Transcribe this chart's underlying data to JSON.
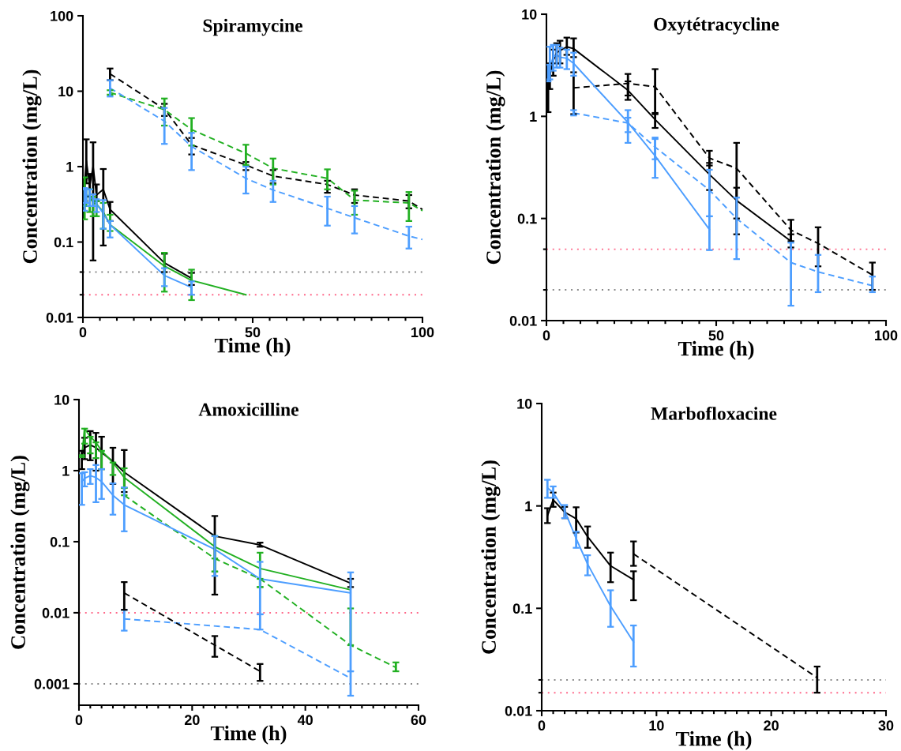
{
  "chart_data": [
    {
      "type": "line",
      "title": "Spiramycine",
      "xlabel": "Time (h)",
      "ylabel": "Concentration (mg/L)",
      "log": "y",
      "grid": false,
      "legend": false,
      "xlim": [
        0,
        100
      ],
      "ylim": [
        0.01,
        100
      ],
      "xticks": [
        0,
        {
          "value": 5,
          "label": null
        },
        {
          "value": 10,
          "label": null
        },
        {
          "value": 15,
          "label": null
        },
        {
          "value": 20,
          "label": null
        },
        {
          "value": 25,
          "label": null
        },
        {
          "value": 30,
          "label": null
        },
        {
          "value": 35,
          "label": null
        },
        {
          "value": 40,
          "label": null
        },
        {
          "value": 45,
          "label": null
        },
        50,
        {
          "value": 55,
          "label": null
        },
        {
          "value": 60,
          "label": null
        },
        {
          "value": 65,
          "label": null
        },
        {
          "value": 70,
          "label": null
        },
        {
          "value": 75,
          "label": null
        },
        {
          "value": 80,
          "label": null
        },
        {
          "value": 85,
          "label": null
        },
        {
          "value": 90,
          "label": null
        },
        {
          "value": 95,
          "label": null
        },
        100
      ],
      "yticks": [
        0.01,
        {
          "value": 0.02,
          "label": null
        },
        {
          "value": 0.04,
          "label": null
        },
        0.1,
        1,
        10,
        100
      ],
      "ref_lines": [
        {
          "axis": "y",
          "value": 0.04,
          "color": "#888888",
          "line_style": "dotted"
        },
        {
          "axis": "y",
          "value": 0.02,
          "color": "#ff6688",
          "line_style": "dotted"
        }
      ],
      "series": [
        {
          "color": "#000000",
          "line_style": "solid",
          "x": [
            0.5,
            1,
            2,
            3,
            4,
            6,
            8,
            24,
            32
          ],
          "values": [
            0.6,
            1.2,
            0.55,
            1.0,
            0.42,
            0.5,
            0.27,
            0.053,
            0.033
          ],
          "errors": [
            [
              0.35,
              0.7
            ],
            [
              0.6,
              2.3
            ],
            [
              0.4,
              0.8
            ],
            [
              0.057,
              2.1
            ],
            [
              0.35,
              0.58
            ],
            [
              0.09,
              0.93
            ],
            [
              0.19,
              0.34
            ],
            [
              0.04,
              0.07
            ],
            [
              0.027,
              0.039
            ]
          ]
        },
        {
          "color": "#22b022",
          "line_style": "solid",
          "x": [
            0.5,
            1,
            2,
            3,
            4,
            6,
            8,
            24,
            32,
            48
          ],
          "values": [
            0.45,
            0.42,
            0.4,
            0.33,
            0.32,
            0.25,
            0.17,
            0.048,
            0.031,
            0.02
          ],
          "errors": [
            [
              0.2,
              0.72
            ],
            [
              0.3,
              0.5
            ],
            [
              0.25,
              0.5
            ],
            [
              0.22,
              0.4
            ],
            [
              0.22,
              0.35
            ],
            [
              0.15,
              0.33
            ],
            [
              0.14,
              0.23
            ],
            [
              0.022,
              0.072
            ],
            [
              0.017,
              0.043
            ],
            null
          ]
        },
        {
          "color": "#4d9eff",
          "line_style": "solid",
          "x": [
            0.5,
            1,
            2,
            3,
            4,
            6,
            8,
            24,
            32
          ],
          "values": [
            0.4,
            0.42,
            0.4,
            0.37,
            0.32,
            0.24,
            0.17,
            0.036,
            0.025
          ],
          "errors": [
            [
              0.26,
              0.52
            ],
            [
              0.33,
              0.5
            ],
            [
              0.3,
              0.5
            ],
            [
              0.3,
              0.43
            ],
            [
              0.25,
              0.37
            ],
            [
              0.15,
              0.36
            ],
            [
              0.115,
              0.19
            ],
            [
              0.026,
              0.045
            ],
            [
              0.02,
              0.03
            ]
          ]
        },
        {
          "color": "#000000",
          "line_style": "dashed",
          "x": [
            8,
            24,
            32,
            48,
            56,
            72,
            80,
            96,
            100
          ],
          "values": [
            17,
            5.8,
            1.95,
            1.05,
            0.75,
            0.58,
            0.42,
            0.35,
            0.27
          ],
          "errors": [
            [
              14,
              20
            ],
            [
              4.7,
              6.8
            ],
            [
              1.45,
              2.4
            ],
            [
              0.9,
              1.15
            ],
            [
              0.6,
              0.9
            ],
            [
              0.45,
              0.65
            ],
            [
              0.33,
              0.5
            ],
            [
              0.28,
              0.42
            ],
            null
          ]
        },
        {
          "color": "#22b022",
          "line_style": "dashed",
          "x": [
            8,
            24,
            32,
            48,
            56,
            72,
            80,
            96,
            100
          ],
          "values": [
            9.6,
            5.7,
            3.1,
            1.5,
            0.95,
            0.7,
            0.36,
            0.33,
            0.26
          ],
          "errors": [
            [
              9,
              10.3
            ],
            [
              3.5,
              8
            ],
            [
              1.9,
              4.4
            ],
            [
              1.05,
              1.95
            ],
            [
              0.58,
              1.28
            ],
            [
              0.5,
              0.92
            ],
            [
              0.23,
              0.48
            ],
            [
              0.19,
              0.46
            ],
            null
          ]
        },
        {
          "color": "#4d9eff",
          "line_style": "dashed",
          "x": [
            8,
            24,
            32,
            48,
            56,
            72,
            80,
            96,
            100
          ],
          "values": [
            11,
            4.0,
            1.85,
            0.7,
            0.49,
            0.28,
            0.21,
            0.12,
            0.108
          ],
          "errors": [
            [
              8.5,
              14
            ],
            [
              2.0,
              6.0
            ],
            [
              0.9,
              2.8
            ],
            [
              0.44,
              1.0
            ],
            [
              0.34,
              0.65
            ],
            [
              0.165,
              0.4
            ],
            [
              0.13,
              0.3
            ],
            [
              0.082,
              0.16
            ],
            null
          ]
        }
      ]
    },
    {
      "type": "line",
      "title": "Oxytétracycline",
      "xlabel": "Time (h)",
      "ylabel": "Concentration (mg/L)",
      "log": "y",
      "grid": false,
      "legend": false,
      "xlim": [
        0,
        100
      ],
      "ylim": [
        0.01,
        10
      ],
      "xticks": [
        0,
        {
          "value": 5,
          "label": null
        },
        {
          "value": 10,
          "label": null
        },
        {
          "value": 15,
          "label": null
        },
        {
          "value": 20,
          "label": null
        },
        {
          "value": 25,
          "label": null
        },
        {
          "value": 30,
          "label": null
        },
        {
          "value": 35,
          "label": null
        },
        {
          "value": 40,
          "label": null
        },
        {
          "value": 45,
          "label": null
        },
        50,
        {
          "value": 55,
          "label": null
        },
        {
          "value": 60,
          "label": null
        },
        {
          "value": 65,
          "label": null
        },
        {
          "value": 70,
          "label": null
        },
        {
          "value": 75,
          "label": null
        },
        {
          "value": 80,
          "label": null
        },
        {
          "value": 85,
          "label": null
        },
        {
          "value": 90,
          "label": null
        },
        {
          "value": 95,
          "label": null
        },
        100
      ],
      "yticks": [
        0.01,
        {
          "value": 0.02,
          "label": null
        },
        {
          "value": 0.05,
          "label": null
        },
        0.1,
        1,
        10
      ],
      "ref_lines": [
        {
          "axis": "y",
          "value": 0.05,
          "color": "#ff6688",
          "line_style": "dotted"
        },
        {
          "axis": "y",
          "value": 0.02,
          "color": "#888888",
          "line_style": "dotted"
        }
      ],
      "series": [
        {
          "color": "#000000",
          "line_style": "solid",
          "x": [
            0.5,
            1,
            2,
            3,
            4,
            6,
            8,
            24,
            32,
            48,
            56,
            72
          ],
          "values": [
            2.2,
            2.5,
            3.5,
            4.2,
            4.4,
            4.8,
            4.6,
            1.8,
            0.93,
            0.27,
            0.15,
            0.06
          ],
          "errors": [
            [
              1.1,
              3.2
            ],
            [
              1.85,
              3.3
            ],
            [
              2.5,
              4.5
            ],
            [
              3.3,
              5.2
            ],
            [
              3.3,
              5.5
            ],
            [
              4.0,
              5.9
            ],
            [
              3.8,
              5.8
            ],
            [
              1.45,
              2.2
            ],
            [
              0.77,
              1.08
            ],
            [
              0.19,
              0.35
            ],
            [
              0.1,
              0.2
            ],
            [
              0.052,
              0.07
            ]
          ]
        },
        {
          "color": "#000000",
          "line_style": "dashed",
          "x": [
            8,
            24,
            32,
            48,
            56,
            72,
            80,
            96
          ],
          "values": [
            1.9,
            2.1,
            1.95,
            0.39,
            0.31,
            0.077,
            0.057,
            0.028
          ],
          "errors": [
            [
              1.05,
              2.7
            ],
            [
              1.6,
              2.6
            ],
            [
              1.05,
              2.9
            ],
            [
              0.33,
              0.46
            ],
            [
              0.07,
              0.55
            ],
            [
              0.06,
              0.097
            ],
            [
              0.034,
              0.082
            ],
            [
              0.02,
              0.037
            ]
          ]
        },
        {
          "color": "#4d9eff",
          "line_style": "solid",
          "x": [
            0.5,
            1,
            2,
            3,
            4,
            6,
            8,
            24,
            32,
            48
          ],
          "values": [
            2.3,
            3.0,
            3.8,
            4.0,
            3.8,
            3.7,
            3.3,
            0.87,
            0.41,
            0.078
          ],
          "errors": [
            [
              2.2,
              3.2
            ],
            [
              2.3,
              4.8
            ],
            [
              2.8,
              5.0
            ],
            [
              3.0,
              5.0
            ],
            [
              3.0,
              4.7
            ],
            [
              2.9,
              4.5
            ],
            [
              2.5,
              4.2
            ],
            [
              0.55,
              1.15
            ],
            [
              0.25,
              0.6
            ],
            [
              0.049,
              0.105
            ]
          ]
        },
        {
          "color": "#4d9eff",
          "line_style": "dashed",
          "x": [
            8,
            24,
            32,
            48,
            56,
            72,
            80,
            96
          ],
          "values": [
            1.08,
            0.86,
            0.5,
            0.19,
            0.1,
            0.037,
            0.03,
            0.022
          ],
          "errors": [
            [
              1.02,
              1.15
            ],
            [
              0.7,
              0.97
            ],
            [
              0.38,
              0.62
            ],
            [
              0.105,
              0.3
            ],
            [
              0.04,
              0.16
            ],
            [
              0.014,
              0.058
            ],
            [
              0.019,
              0.044
            ],
            [
              0.019,
              0.027
            ]
          ]
        }
      ]
    },
    {
      "type": "line",
      "title": "Amoxicilline",
      "xlabel": "Time (h)",
      "ylabel": "Concentration (mg/L)",
      "log": "y",
      "grid": false,
      "legend": false,
      "xlim": [
        0,
        60
      ],
      "ylim": [
        0.0005,
        10
      ],
      "xticks": [
        0,
        {
          "value": 2,
          "label": null
        },
        {
          "value": 4,
          "label": null
        },
        {
          "value": 6,
          "label": null
        },
        {
          "value": 8,
          "label": null
        },
        {
          "value": 10,
          "label": null
        },
        {
          "value": 12,
          "label": null
        },
        {
          "value": 14,
          "label": null
        },
        {
          "value": 16,
          "label": null
        },
        {
          "value": 18,
          "label": null
        },
        20,
        {
          "value": 22,
          "label": null
        },
        {
          "value": 24,
          "label": null
        },
        {
          "value": 26,
          "label": null
        },
        {
          "value": 28,
          "label": null
        },
        {
          "value": 30,
          "label": null
        },
        {
          "value": 32,
          "label": null
        },
        {
          "value": 34,
          "label": null
        },
        {
          "value": 36,
          "label": null
        },
        {
          "value": 38,
          "label": null
        },
        40,
        {
          "value": 42,
          "label": null
        },
        {
          "value": 44,
          "label": null
        },
        {
          "value": 46,
          "label": null
        },
        {
          "value": 48,
          "label": null
        },
        {
          "value": 50,
          "label": null
        },
        {
          "value": 52,
          "label": null
        },
        {
          "value": 54,
          "label": null
        },
        {
          "value": 56,
          "label": null
        },
        {
          "value": 58,
          "label": null
        },
        60
      ],
      "yticks": [
        0.001,
        0.01,
        0.1,
        1,
        10
      ],
      "ref_lines": [
        {
          "axis": "y",
          "value": 0.01,
          "color": "#ff6688",
          "line_style": "dotted"
        },
        {
          "axis": "y",
          "value": 0.001,
          "color": "#888888",
          "line_style": "dotted"
        }
      ],
      "series": [
        {
          "color": "#000000",
          "line_style": "solid",
          "x": [
            0.5,
            1,
            2,
            3,
            4,
            6,
            8,
            24,
            32,
            48
          ],
          "values": [
            1.6,
            2.1,
            2.3,
            2.1,
            1.8,
            1.35,
            0.95,
            0.12,
            0.09,
            0.026
          ],
          "errors": [
            [
              1.05,
              1.9
            ],
            [
              1.45,
              2.9
            ],
            [
              1.4,
              3.6
            ],
            [
              1.0,
              3.4
            ],
            [
              1.05,
              3.0
            ],
            [
              0.65,
              2.1
            ],
            [
              0.5,
              1.95
            ],
            [
              0.018,
              0.23
            ],
            [
              0.085,
              0.097
            ],
            [
              0.023,
              0.03
            ]
          ]
        },
        {
          "color": "#22b022",
          "line_style": "solid",
          "x": [
            0.5,
            1,
            2,
            3,
            4,
            6,
            8,
            24,
            32,
            48
          ],
          "values": [
            1.6,
            3.9,
            3.0,
            2.5,
            1.9,
            1.3,
            0.8,
            0.085,
            0.042,
            0.021
          ],
          "errors": [
            [
              1.55,
              1.65
            ],
            [
              2.4,
              3.9
            ],
            [
              1.75,
              3.0
            ],
            [
              1.5,
              2.5
            ],
            [
              1.05,
              1.9
            ],
            [
              0.87,
              1.3
            ],
            [
              0.57,
              1.08
            ],
            [
              0.038,
              0.12
            ],
            [
              0.023,
              0.07
            ],
            null
          ]
        },
        {
          "color": "#22b022",
          "line_style": "dashed",
          "x": [
            8,
            24,
            32,
            48,
            56
          ],
          "values": [
            0.45,
            0.058,
            0.03,
            0.0035,
            0.0017
          ],
          "errors": [
            [
              0.45,
              0.57
            ],
            [
              0.038,
              0.058
            ],
            [
              0.023,
              0.03
            ],
            [
              0.0035,
              0.0115
            ],
            [
              0.0015,
              0.002
            ]
          ]
        },
        {
          "color": "#4d9eff",
          "line_style": "solid",
          "x": [
            0.5,
            1,
            2,
            3,
            4,
            6,
            8,
            24,
            32,
            48
          ],
          "values": [
            0.7,
            0.78,
            0.85,
            0.8,
            0.7,
            0.45,
            0.33,
            0.078,
            0.03,
            0.019
          ],
          "errors": [
            [
              0.33,
              0.92
            ],
            [
              0.6,
              0.95
            ],
            [
              0.65,
              1.05
            ],
            [
              0.36,
              1.2
            ],
            [
              0.4,
              1.05
            ],
            [
              0.24,
              0.66
            ],
            [
              0.14,
              0.58
            ],
            [
              0.033,
              0.12
            ],
            [
              0.0095,
              0.052
            ],
            [
              0.0015,
              0.037
            ]
          ]
        },
        {
          "color": "#4d9eff",
          "line_style": "dashed",
          "x": [
            8,
            32,
            48
          ],
          "values": [
            0.0082,
            0.0058,
            0.0012
          ],
          "errors": [
            [
              0.0056,
              0.011
            ],
            [
              0.0058,
              0.0095
            ],
            [
              0.00068,
              0.0015
            ]
          ]
        },
        {
          "color": "#000000",
          "line_style": "dashed",
          "x": [
            8,
            24,
            32
          ],
          "values": [
            0.019,
            0.0035,
            0.0015
          ],
          "errors": [
            [
              0.011,
              0.027
            ],
            [
              0.0024,
              0.0047
            ],
            [
              0.0011,
              0.0019
            ]
          ]
        }
      ]
    },
    {
      "type": "line",
      "title": "Marbofloxacine",
      "xlabel": "Time (h)",
      "ylabel": "Concentration (mg/L)",
      "log": "y",
      "grid": false,
      "legend": false,
      "xlim": [
        0,
        30
      ],
      "ylim": [
        0.01,
        10
      ],
      "xticks": [
        0,
        {
          "value": 1,
          "label": null
        },
        {
          "value": 2,
          "label": null
        },
        {
          "value": 3,
          "label": null
        },
        {
          "value": 4,
          "label": null
        },
        {
          "value": 5,
          "label": null
        },
        {
          "value": 6,
          "label": null
        },
        {
          "value": 7,
          "label": null
        },
        {
          "value": 8,
          "label": null
        },
        {
          "value": 9,
          "label": null
        },
        10,
        {
          "value": 11,
          "label": null
        },
        {
          "value": 12,
          "label": null
        },
        {
          "value": 13,
          "label": null
        },
        {
          "value": 14,
          "label": null
        },
        {
          "value": 15,
          "label": null
        },
        {
          "value": 16,
          "label": null
        },
        {
          "value": 17,
          "label": null
        },
        {
          "value": 18,
          "label": null
        },
        {
          "value": 19,
          "label": null
        },
        20,
        {
          "value": 21,
          "label": null
        },
        {
          "value": 22,
          "label": null
        },
        {
          "value": 23,
          "label": null
        },
        {
          "value": 24,
          "label": null
        },
        {
          "value": 25,
          "label": null
        },
        {
          "value": 26,
          "label": null
        },
        {
          "value": 27,
          "label": null
        },
        {
          "value": 28,
          "label": null
        },
        {
          "value": 29,
          "label": null
        },
        30
      ],
      "yticks": [
        0.01,
        {
          "value": 0.015,
          "label": null
        },
        {
          "value": 0.02,
          "label": null
        },
        0.1,
        1,
        10
      ],
      "ref_lines": [
        {
          "axis": "y",
          "value": 0.02,
          "color": "#888888",
          "line_style": "dotted"
        },
        {
          "axis": "y",
          "value": 0.015,
          "color": "#ff6688",
          "line_style": "dotted"
        }
      ],
      "series": [
        {
          "color": "#000000",
          "line_style": "solid",
          "x": [
            0.5,
            1,
            2,
            3,
            4,
            6,
            8
          ],
          "values": [
            0.8,
            1.15,
            0.87,
            0.75,
            0.5,
            0.26,
            0.19
          ],
          "errors": [
            [
              0.68,
              0.95
            ],
            [
              0.98,
              1.35
            ],
            [
              0.76,
              0.98
            ],
            [
              0.55,
              0.97
            ],
            [
              0.39,
              0.63
            ],
            [
              0.18,
              0.35
            ],
            [
              0.12,
              0.23
            ]
          ]
        },
        {
          "color": "#000000",
          "line_style": "dashed",
          "x": [
            8,
            24
          ],
          "values": [
            0.34,
            0.021
          ],
          "errors": [
            [
              0.26,
              0.45
            ],
            [
              0.015,
              0.027
            ]
          ]
        },
        {
          "color": "#4d9eff",
          "line_style": "solid",
          "x": [
            0.5,
            1,
            2,
            3,
            4,
            6,
            8
          ],
          "values": [
            1.5,
            1.35,
            0.9,
            0.48,
            0.27,
            0.105,
            0.047
          ],
          "errors": [
            [
              1.2,
              1.8
            ],
            [
              1.2,
              1.55
            ],
            [
              0.76,
              1.02
            ],
            [
              0.39,
              0.56
            ],
            [
              0.21,
              0.33
            ],
            [
              0.066,
              0.15
            ],
            [
              0.027,
              0.068
            ]
          ]
        }
      ]
    }
  ]
}
